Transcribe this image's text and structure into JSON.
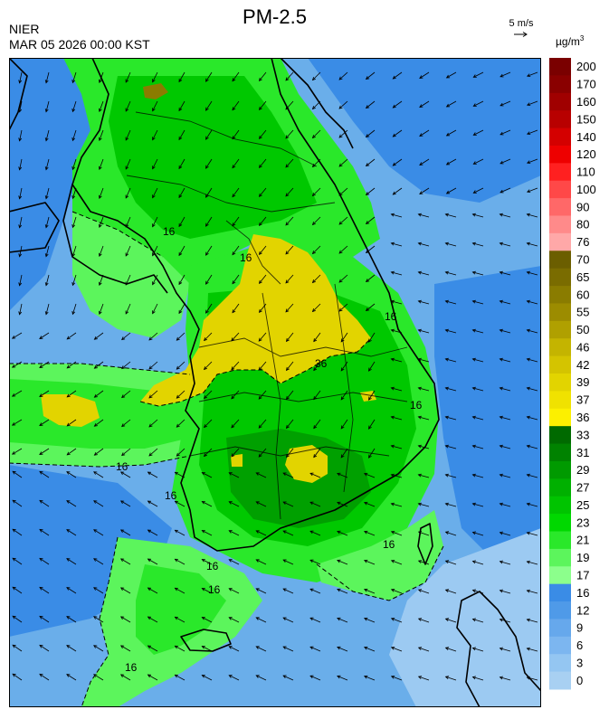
{
  "title": "PM-2.5",
  "agency": "NIER",
  "timestamp": "MAR 05 2026 00:00 KST",
  "wind_reference": {
    "label": "5 m/s"
  },
  "legend": {
    "unit_prefix": "µg/m",
    "unit_sup": "3",
    "levels": [
      {
        "label": "200",
        "color": "#7a0000"
      },
      {
        "label": "170",
        "color": "#8a0000"
      },
      {
        "label": "160",
        "color": "#a00000"
      },
      {
        "label": "150",
        "color": "#b80000"
      },
      {
        "label": "140",
        "color": "#d40000"
      },
      {
        "label": "120",
        "color": "#ee0000"
      },
      {
        "label": "110",
        "color": "#ff2020"
      },
      {
        "label": "100",
        "color": "#ff4848"
      },
      {
        "label": "90",
        "color": "#ff6868"
      },
      {
        "label": "80",
        "color": "#ff8a8a"
      },
      {
        "label": "76",
        "color": "#ffa8a8"
      },
      {
        "label": "70",
        "color": "#6b5e00"
      },
      {
        "label": "65",
        "color": "#7a6c00"
      },
      {
        "label": "60",
        "color": "#8a7c00"
      },
      {
        "label": "55",
        "color": "#9c8c00"
      },
      {
        "label": "50",
        "color": "#b0a000"
      },
      {
        "label": "46",
        "color": "#c4b400"
      },
      {
        "label": "42",
        "color": "#d4c400"
      },
      {
        "label": "39",
        "color": "#e2d400"
      },
      {
        "label": "37",
        "color": "#f0e200"
      },
      {
        "label": "36",
        "color": "#fcf000"
      },
      {
        "label": "33",
        "color": "#006a00"
      },
      {
        "label": "31",
        "color": "#008200"
      },
      {
        "label": "29",
        "color": "#009a00"
      },
      {
        "label": "27",
        "color": "#00b000"
      },
      {
        "label": "25",
        "color": "#00c400"
      },
      {
        "label": "23",
        "color": "#00d800"
      },
      {
        "label": "21",
        "color": "#2ae82a"
      },
      {
        "label": "19",
        "color": "#5cf55c"
      },
      {
        "label": "17",
        "color": "#8cff8c"
      },
      {
        "label": "16",
        "color": "#3a8ce6"
      },
      {
        "label": "12",
        "color": "#4f9ae8"
      },
      {
        "label": "9",
        "color": "#66a8ec"
      },
      {
        "label": "6",
        "color": "#7cb6f0"
      },
      {
        "label": "3",
        "color": "#94c6f2"
      },
      {
        "label": "0",
        "color": "#a8d0f2"
      }
    ]
  },
  "map_colors": {
    "ocean": "#6aaeea",
    "ocean_deep": "#3a8ce6",
    "ocean_light": "#9ccaf2",
    "green_light": "#5cf55c",
    "green": "#2ae82a",
    "green_mid": "#00c800",
    "green_dark": "#00a000",
    "yellow": "#e2d400",
    "olive": "#8a7c00"
  },
  "contour_labels": [
    "16",
    "16",
    "16",
    "36",
    "16",
    "16",
    "16",
    "16",
    "16",
    "16",
    "16"
  ]
}
